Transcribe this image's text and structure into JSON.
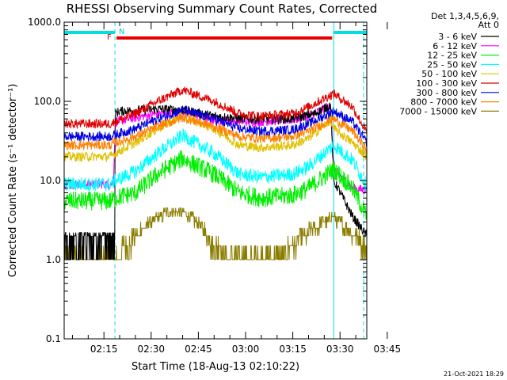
{
  "chart_data": {
    "type": "line",
    "title": "RHESSI Observing Summary Count Rates, Corrected",
    "xlabel": "Start Time (18-Aug-13 02:10:22)",
    "ylabel": "Corrected Count Rate (s⁻¹ detector⁻¹)",
    "y_scale": "log",
    "ylim": [
      0.1,
      1000
    ],
    "y_ticks": [
      "1000.0",
      "100.0",
      "10.0",
      "1.0",
      "0.1"
    ],
    "xlim_minutes": [
      2.37,
      98.5
    ],
    "x_ticks": [
      "02:15",
      "02:30",
      "02:45",
      "03:00",
      "03:15",
      "03:30",
      "03:45"
    ],
    "legend_header": [
      "Det 1,3,4,5,6,9,",
      "Att 0"
    ],
    "legend_position": "right",
    "timestamp": "21-Oct-2021 18:29",
    "annotations": {
      "F": {
        "label": "F",
        "color": "#e60000"
      },
      "N": {
        "label": "N",
        "color": "#00cccc"
      }
    },
    "flag_bars": [
      {
        "name": "night",
        "color": "#00e0e0",
        "x_start": 2.37,
        "x_end": 18.5
      },
      {
        "name": "night",
        "color": "#00e0e0",
        "x_start": 88.0,
        "x_end": 98.5
      },
      {
        "name": "flare",
        "color": "#e60000",
        "x_start": 19.0,
        "x_end": 87.5
      }
    ],
    "vertical_markers": [
      {
        "x": 2.37,
        "style": "solid",
        "color": "#00e0e0"
      },
      {
        "x": 18.5,
        "style": "dashed",
        "color": "#00e0e0"
      },
      {
        "x": 88.0,
        "style": "solid",
        "color": "#00e0e0"
      },
      {
        "x": 97.5,
        "style": "dashed",
        "color": "#00e0e0"
      }
    ],
    "series": [
      {
        "name": "3 - 6 keV",
        "color": "#000000",
        "x": [
          2.4,
          18,
          18.6,
          20,
          32,
          40,
          50,
          60,
          75,
          82,
          87,
          88,
          89,
          94,
          98.5
        ],
        "y": [
          2.2,
          2.2,
          70,
          75,
          80,
          78,
          65,
          60,
          60,
          70,
          90,
          9.5,
          8.5,
          3.5,
          2.0
        ]
      },
      {
        "name": "6 - 12 keV",
        "color": "#ff00ff",
        "x": [
          2.4,
          17,
          18,
          18.6,
          25,
          32,
          40,
          50,
          62,
          75,
          82,
          87,
          88,
          94,
          98.5
        ],
        "y": [
          9.0,
          9.0,
          9.5,
          55,
          62,
          70,
          72,
          58,
          55,
          58,
          70,
          90,
          14,
          8,
          7.5
        ]
      },
      {
        "name": "12 - 25 keV",
        "color": "#00ee00",
        "x": [
          2.4,
          17,
          18.6,
          25,
          32,
          40,
          50,
          58,
          65,
          75,
          80,
          87,
          88,
          94,
          98.5
        ],
        "y": [
          5.5,
          5.5,
          6.0,
          7.0,
          12,
          19,
          12,
          7,
          6.0,
          6.5,
          8.0,
          13,
          14,
          8,
          3.5
        ]
      },
      {
        "name": "25 - 50 keV",
        "color": "#00ffff",
        "x": [
          2.4,
          17,
          18.6,
          25,
          32,
          40,
          50,
          58,
          65,
          75,
          80,
          87,
          88,
          94,
          98.5
        ],
        "y": [
          9.0,
          9.0,
          10,
          13,
          22,
          37,
          22,
          12,
          11,
          12,
          15,
          26,
          28,
          18,
          8.5
        ]
      },
      {
        "name": "50 - 100 keV",
        "color": "#e0c000",
        "x": [
          2.4,
          17,
          18.6,
          25,
          32,
          40,
          50,
          58,
          65,
          75,
          80,
          87,
          88,
          94,
          98.5
        ],
        "y": [
          20,
          20,
          22,
          30,
          45,
          66,
          45,
          28,
          26,
          28,
          34,
          58,
          45,
          30,
          20
        ]
      },
      {
        "name": "100 - 300 keV",
        "color": "#e00000",
        "x": [
          2.4,
          17,
          18.6,
          25,
          32,
          40,
          50,
          58,
          65,
          75,
          80,
          87,
          88,
          94,
          98.5
        ],
        "y": [
          52,
          52,
          55,
          70,
          100,
          140,
          100,
          70,
          65,
          70,
          85,
          120,
          125,
          85,
          40
        ]
      },
      {
        "name": "300 - 800 keV",
        "color": "#0000e0",
        "x": [
          2.4,
          17,
          18.6,
          25,
          32,
          40,
          50,
          58,
          65,
          75,
          80,
          87,
          88,
          94,
          98.5
        ],
        "y": [
          36,
          36,
          38,
          45,
          60,
          78,
          60,
          45,
          42,
          44,
          52,
          72,
          75,
          55,
          30
        ]
      },
      {
        "name": "800 - 7000 keV",
        "color": "#ff7f00",
        "x": [
          2.4,
          17,
          18.6,
          25,
          32,
          40,
          50,
          58,
          65,
          75,
          80,
          87,
          88,
          94,
          98.5
        ],
        "y": [
          28,
          28,
          30,
          36,
          48,
          62,
          48,
          36,
          34,
          36,
          42,
          58,
          60,
          42,
          24
        ]
      },
      {
        "name": "7000 - 15000 keV",
        "color": "#8b7d00",
        "x": [
          2.4,
          18,
          18.6,
          25,
          30,
          35,
          40,
          45,
          50,
          55,
          60,
          70,
          73,
          78,
          85,
          88,
          92,
          98.5
        ],
        "y": [
          1.0,
          1.0,
          1.0,
          2.0,
          3.0,
          4.0,
          4.0,
          3.0,
          1.5,
          1.0,
          1.0,
          1.0,
          1.2,
          2.0,
          3.0,
          3.5,
          2.5,
          1.5
        ]
      }
    ]
  }
}
